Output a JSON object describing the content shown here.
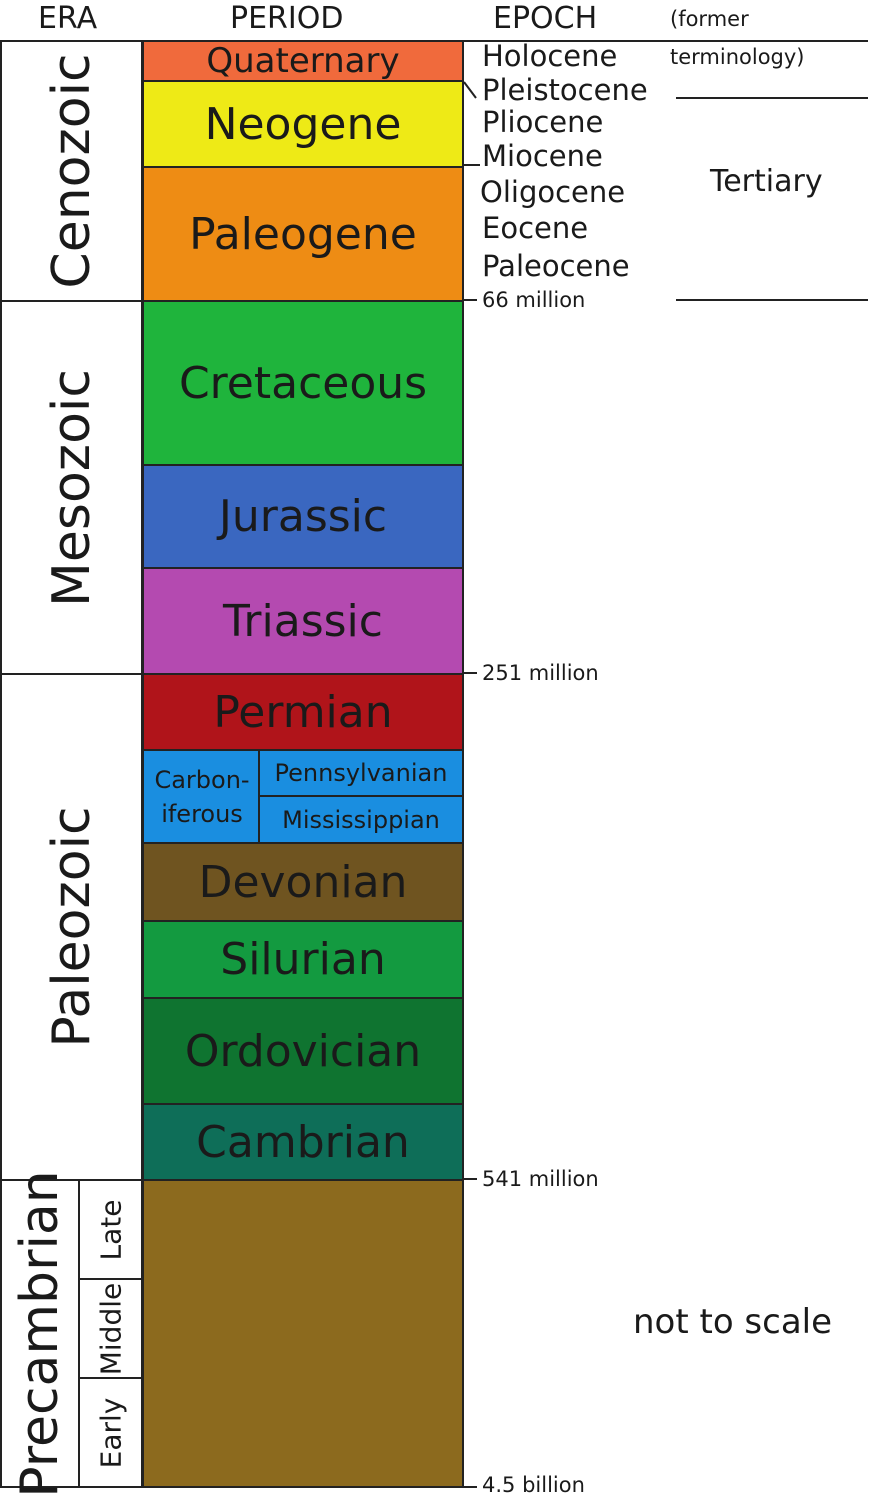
{
  "headers": {
    "era": "ERA",
    "period": "PERIOD",
    "epoch": "EPOCH",
    "former": "(former terminology)"
  },
  "eras": [
    {
      "name": "Cenozoic"
    },
    {
      "name": "Mesozoic"
    },
    {
      "name": "Paleozoic"
    },
    {
      "name": "Precambrian",
      "subdivisions": [
        "Late",
        "Middle",
        "Early"
      ]
    }
  ],
  "periods": [
    {
      "name": "Quaternary",
      "color": "#f06a3c"
    },
    {
      "name": "Neogene",
      "color": "#eeea16"
    },
    {
      "name": "Paleogene",
      "color": "#ee8c14"
    },
    {
      "name": "Cretaceous",
      "color": "#1fb43c"
    },
    {
      "name": "Jurassic",
      "color": "#3a67c0"
    },
    {
      "name": "Triassic",
      "color": "#b44ab0"
    },
    {
      "name": "Permian",
      "color": "#b0141a"
    },
    {
      "name": "Carbon-\niferous",
      "color": "#1a8ee0",
      "subperiods": [
        "Pennsylvanian",
        "Mississippian"
      ]
    },
    {
      "name": "Devonian",
      "color": "#6f5420"
    },
    {
      "name": "Silurian",
      "color": "#139a40"
    },
    {
      "name": "Ordovician",
      "color": "#0f7430"
    },
    {
      "name": "Cambrian",
      "color": "#0e6e58"
    },
    {
      "name": "",
      "color": "#8c6a1e"
    }
  ],
  "epochs": [
    "Holocene",
    "Pleistocene",
    "Pliocene",
    "Miocene",
    "Oligocene",
    "Eocene",
    "Paleocene"
  ],
  "ages": [
    "66 million",
    "251 million",
    "541 million",
    "4.5 billion"
  ],
  "former_terminology": "Tertiary",
  "note": "not to scale"
}
